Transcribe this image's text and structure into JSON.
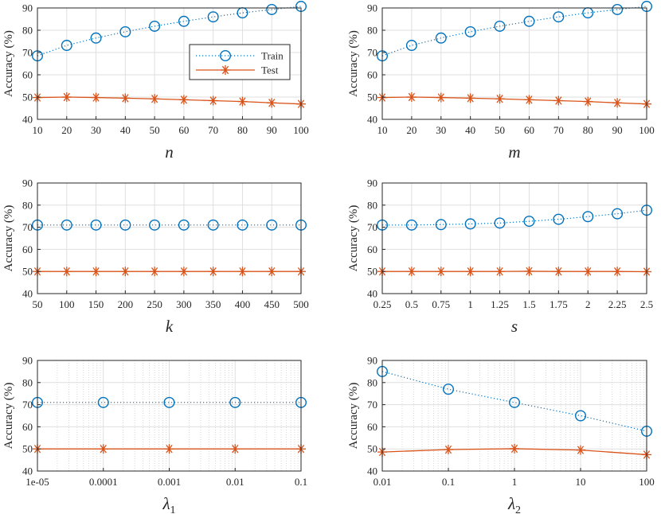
{
  "colors": {
    "train": "#0072BD",
    "test": "#D95319",
    "grid": "#dfdfdf",
    "axis": "#262626"
  },
  "legend": {
    "position": "upper-middle of first panel",
    "train_label": "Train",
    "test_label": "Test"
  },
  "chart_data": [
    {
      "type": "line",
      "xscale": "linear",
      "xlabel": "n",
      "xlabel_sub": "",
      "ylabel": "Accuracy (%)",
      "ylim": [
        40,
        90
      ],
      "yticks": [
        "40",
        "50",
        "60",
        "70",
        "80",
        "90"
      ],
      "x": [
        10,
        20,
        30,
        40,
        50,
        60,
        70,
        80,
        90,
        100
      ],
      "xticklabels": [
        "10",
        "20",
        "30",
        "40",
        "50",
        "60",
        "70",
        "80",
        "90",
        "100"
      ],
      "xlim": [
        10,
        100
      ],
      "grid": true,
      "series": [
        {
          "name": "Train",
          "values": [
            68.5,
            73.2,
            76.5,
            79.3,
            81.8,
            84.0,
            86.0,
            87.8,
            89.3,
            90.7
          ]
        },
        {
          "name": "Test",
          "values": [
            49.8,
            50.0,
            49.8,
            49.5,
            49.2,
            48.8,
            48.4,
            48.0,
            47.4,
            46.9
          ]
        }
      ]
    },
    {
      "type": "line",
      "xscale": "linear",
      "xlabel": "m",
      "xlabel_sub": "",
      "ylabel": "Accuracy (%)",
      "ylim": [
        40,
        90
      ],
      "yticks": [
        "40",
        "50",
        "60",
        "70",
        "80",
        "90"
      ],
      "x": [
        10,
        20,
        30,
        40,
        50,
        60,
        70,
        80,
        90,
        100
      ],
      "xticklabels": [
        "10",
        "20",
        "30",
        "40",
        "50",
        "60",
        "70",
        "80",
        "90",
        "100"
      ],
      "xlim": [
        10,
        100
      ],
      "grid": true,
      "series": [
        {
          "name": "Train",
          "values": [
            68.5,
            73.2,
            76.5,
            79.3,
            81.8,
            84.0,
            86.0,
            87.8,
            89.3,
            90.7
          ]
        },
        {
          "name": "Test",
          "values": [
            49.8,
            50.0,
            49.8,
            49.5,
            49.2,
            48.8,
            48.4,
            48.0,
            47.4,
            46.9
          ]
        }
      ]
    },
    {
      "type": "line",
      "xscale": "linear",
      "xlabel": "k",
      "xlabel_sub": "",
      "ylabel": "Accuracy (%)",
      "ylim": [
        40,
        90
      ],
      "yticks": [
        "40",
        "50",
        "60",
        "70",
        "80",
        "90"
      ],
      "x": [
        50,
        100,
        150,
        200,
        250,
        300,
        350,
        400,
        450,
        500
      ],
      "xticklabels": [
        "50",
        "100",
        "150",
        "200",
        "250",
        "300",
        "350",
        "400",
        "450",
        "500"
      ],
      "xlim": [
        50,
        500
      ],
      "grid": true,
      "series": [
        {
          "name": "Train",
          "values": [
            71.0,
            71.0,
            71.0,
            71.0,
            71.0,
            71.0,
            71.0,
            71.0,
            71.0,
            71.0
          ]
        },
        {
          "name": "Test",
          "values": [
            50.0,
            50.0,
            50.0,
            50.0,
            50.0,
            50.0,
            50.0,
            50.0,
            50.0,
            50.0
          ]
        }
      ]
    },
    {
      "type": "line",
      "xscale": "linear",
      "xlabel": "s",
      "xlabel_sub": "",
      "ylabel": "Accuracy (%)",
      "ylim": [
        40,
        90
      ],
      "yticks": [
        "40",
        "50",
        "60",
        "70",
        "80",
        "90"
      ],
      "x": [
        0.25,
        0.5,
        0.75,
        1,
        1.25,
        1.5,
        1.75,
        2,
        2.25,
        2.5
      ],
      "xticklabels": [
        "0.25",
        "0.5",
        "0.75",
        "1",
        "1.25",
        "1.5",
        "1.75",
        "2",
        "2.25",
        "2.5"
      ],
      "xlim": [
        0.25,
        2.5
      ],
      "grid": true,
      "series": [
        {
          "name": "Train",
          "values": [
            71.0,
            71.0,
            71.2,
            71.5,
            71.9,
            72.7,
            73.6,
            74.8,
            76.1,
            77.7
          ]
        },
        {
          "name": "Test",
          "values": [
            50.0,
            50.0,
            50.0,
            50.0,
            50.0,
            50.1,
            50.0,
            50.0,
            50.0,
            49.9
          ]
        }
      ]
    },
    {
      "type": "line",
      "xscale": "log",
      "xlabel": "λ",
      "xlabel_sub": "1",
      "ylabel": "Accuracy (%)",
      "ylim": [
        40,
        90
      ],
      "yticks": [
        "40",
        "50",
        "60",
        "70",
        "80",
        "90"
      ],
      "x": [
        1e-05,
        0.0001,
        0.001,
        0.01,
        0.1
      ],
      "xticklabels": [
        "1e-05",
        "0.0001",
        "0.001",
        "0.01",
        "0.1"
      ],
      "xlim": [
        1e-05,
        0.1
      ],
      "grid": true,
      "series": [
        {
          "name": "Train",
          "values": [
            71.0,
            71.0,
            71.0,
            71.0,
            71.0
          ]
        },
        {
          "name": "Test",
          "values": [
            50.0,
            50.0,
            50.0,
            50.0,
            50.0
          ]
        }
      ]
    },
    {
      "type": "line",
      "xscale": "log",
      "xlabel": "λ",
      "xlabel_sub": "2",
      "ylabel": "Accuracy (%)",
      "ylim": [
        40,
        90
      ],
      "yticks": [
        "40",
        "50",
        "60",
        "70",
        "80",
        "90"
      ],
      "x": [
        0.01,
        0.1,
        1,
        10,
        100
      ],
      "xticklabels": [
        "0.01",
        "0.1",
        "1",
        "10",
        "100"
      ],
      "xlim": [
        0.01,
        100
      ],
      "grid": true,
      "series": [
        {
          "name": "Train",
          "values": [
            85.0,
            77.0,
            71.0,
            65.0,
            58.0
          ]
        },
        {
          "name": "Test",
          "values": [
            48.6,
            49.7,
            50.1,
            49.5,
            47.4
          ]
        }
      ]
    }
  ]
}
